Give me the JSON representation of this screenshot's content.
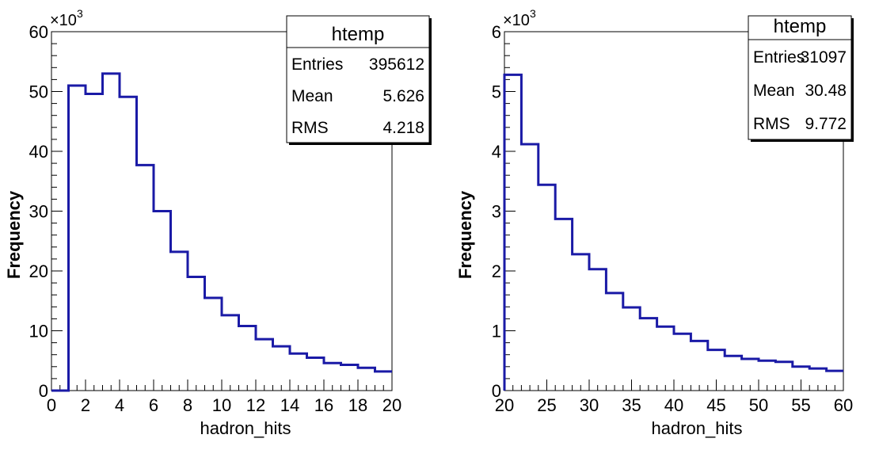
{
  "chart_data": [
    {
      "type": "bar",
      "title": "",
      "xlabel": "hadron_hits",
      "ylabel": "Frequency",
      "y_multiplier_label": "×10",
      "y_multiplier_exp": "3",
      "xlim": [
        0,
        20
      ],
      "ylim": [
        0,
        60
      ],
      "x_ticks": [
        0,
        2,
        4,
        6,
        8,
        10,
        12,
        14,
        16,
        18,
        20
      ],
      "y_ticks": [
        0,
        10,
        20,
        30,
        40,
        50,
        60
      ],
      "bin_edges": [
        0,
        1,
        2,
        3,
        4,
        5,
        6,
        7,
        8,
        9,
        10,
        11,
        12,
        13,
        14,
        15,
        16,
        17,
        18,
        19,
        20
      ],
      "values": [
        0,
        51.0,
        49.6,
        53.0,
        49.1,
        37.7,
        30.0,
        23.2,
        19.0,
        15.5,
        12.6,
        10.8,
        8.6,
        7.4,
        6.2,
        5.5,
        4.6,
        4.3,
        3.8,
        3.2
      ],
      "line_color": "#1a1aa6",
      "stats": {
        "title": "htemp",
        "rows": [
          {
            "label": "Entries",
            "value": "395612"
          },
          {
            "label": "Mean",
            "value": "5.626"
          },
          {
            "label": "RMS",
            "value": "4.218"
          }
        ]
      }
    },
    {
      "type": "bar",
      "title": "",
      "xlabel": "hadron_hits",
      "ylabel": "Frequency",
      "y_multiplier_label": "×10",
      "y_multiplier_exp": "3",
      "xlim": [
        20,
        60
      ],
      "ylim": [
        0,
        6
      ],
      "x_ticks": [
        20,
        25,
        30,
        35,
        40,
        45,
        50,
        55,
        60
      ],
      "y_ticks": [
        0,
        1,
        2,
        3,
        4,
        5,
        6
      ],
      "bin_edges": [
        20,
        22,
        24,
        26,
        28,
        30,
        32,
        34,
        36,
        38,
        40,
        42,
        44,
        46,
        48,
        50,
        52,
        54,
        56,
        58,
        60
      ],
      "values": [
        5.28,
        4.12,
        3.44,
        2.87,
        2.28,
        2.03,
        1.63,
        1.39,
        1.21,
        1.07,
        0.95,
        0.83,
        0.68,
        0.58,
        0.53,
        0.5,
        0.48,
        0.4,
        0.37,
        0.33
      ],
      "line_color": "#1a1aa6",
      "stats": {
        "title": "htemp",
        "rows": [
          {
            "label": "Entries",
            "value": "31097"
          },
          {
            "label": "Mean",
            "value": "30.48"
          },
          {
            "label": "RMS",
            "value": "9.772"
          }
        ]
      }
    }
  ]
}
